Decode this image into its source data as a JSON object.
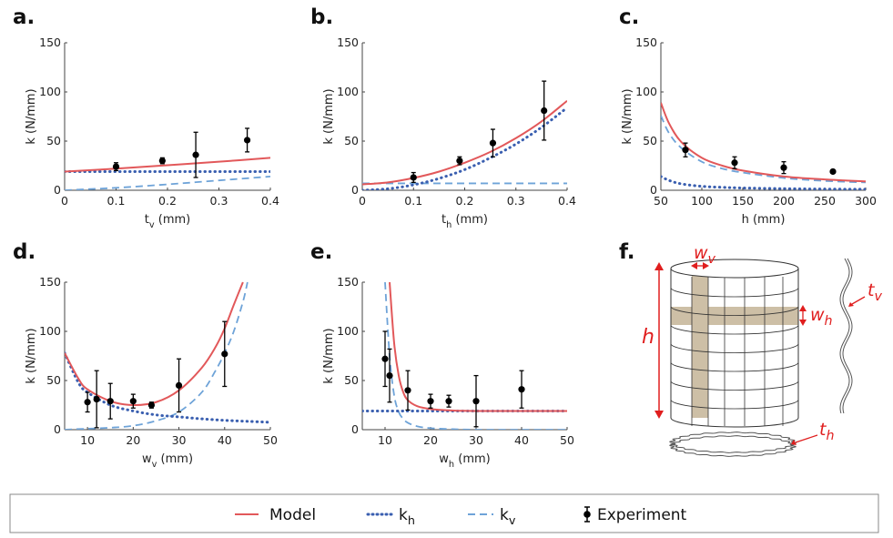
{
  "colors": {
    "model": "#e2585a",
    "kh": "#3a5fb0",
    "kv": "#6ea3d8",
    "experiment": "#000000",
    "diagram_accent": "#e01e1e",
    "band": "#cdbfa6"
  },
  "panels": [
    {
      "label": "a.",
      "xlabel": "t_v (mm)"
    },
    {
      "label": "b.",
      "xlabel": "t_h (mm)"
    },
    {
      "label": "c.",
      "xlabel": "h (mm)"
    },
    {
      "label": "d.",
      "xlabel": "w_v (mm)"
    },
    {
      "label": "e.",
      "xlabel": "w_h (mm)"
    },
    {
      "label": "f.",
      "xlabel": ""
    }
  ],
  "diagram": {
    "w_v": "w_v",
    "w_h": "w_h",
    "h": "h",
    "t_v": "t_v",
    "t_h": "t_h"
  },
  "legend": {
    "model": "Model",
    "kh": "k_h",
    "kv": "k_v",
    "experiment": "Experiment"
  },
  "chart_data": [
    {
      "type": "line",
      "panel": "a.",
      "ylabel": "k (N/mm)",
      "xlabel": "t_v (mm)",
      "xlim": [
        0,
        0.4
      ],
      "ylim": [
        0,
        150
      ],
      "xticks": [
        "0",
        "0.1",
        "0.2",
        "0.3",
        "0.4"
      ],
      "yticks": [
        "0",
        "50",
        "100",
        "150"
      ],
      "series": [
        {
          "name": "Model",
          "x": [
            0,
            0.1,
            0.2,
            0.3,
            0.4
          ],
          "values": [
            19,
            22,
            25.5,
            29,
            33
          ]
        },
        {
          "name": "k_h",
          "x": [
            0,
            0.1,
            0.2,
            0.3,
            0.4
          ],
          "values": [
            19,
            19,
            19,
            19,
            19
          ]
        },
        {
          "name": "k_v",
          "x": [
            0,
            0.1,
            0.2,
            0.3,
            0.4
          ],
          "values": [
            0,
            2.5,
            6,
            10,
            14
          ]
        }
      ],
      "experiment": {
        "x": [
          0.1,
          0.19,
          0.255,
          0.355
        ],
        "y": [
          24,
          30,
          36,
          51
        ],
        "err": [
          4,
          3,
          23,
          12
        ]
      }
    },
    {
      "type": "line",
      "panel": "b.",
      "ylabel": "k (N/mm)",
      "xlabel": "t_h (mm)",
      "xlim": [
        0,
        0.4
      ],
      "ylim": [
        0,
        150
      ],
      "xticks": [
        "0",
        "0.1",
        "0.2",
        "0.3",
        "0.4"
      ],
      "yticks": [
        "0",
        "50",
        "100",
        "150"
      ],
      "series": [
        {
          "name": "Model",
          "x": [
            0,
            0.05,
            0.1,
            0.15,
            0.2,
            0.25,
            0.3,
            0.35,
            0.4
          ],
          "values": [
            6,
            8,
            12.5,
            19,
            28,
            39,
            53,
            70,
            91
          ]
        },
        {
          "name": "k_h",
          "x": [
            0,
            0.05,
            0.1,
            0.15,
            0.2,
            0.25,
            0.3,
            0.35,
            0.4
          ],
          "values": [
            0,
            1.5,
            5.5,
            12,
            21,
            33,
            47,
            64,
            84
          ]
        },
        {
          "name": "k_v",
          "x": [
            0,
            0.4
          ],
          "values": [
            7,
            7
          ]
        }
      ],
      "experiment": {
        "x": [
          0.1,
          0.19,
          0.255,
          0.355
        ],
        "y": [
          13,
          30,
          48,
          81
        ],
        "err": [
          5,
          4,
          14,
          30
        ]
      }
    },
    {
      "type": "line",
      "panel": "c.",
      "ylabel": "k (N/mm)",
      "xlabel": "h (mm)",
      "xlim": [
        50,
        300
      ],
      "ylim": [
        0,
        150
      ],
      "xticks": [
        "50",
        "100",
        "150",
        "200",
        "250",
        "300"
      ],
      "yticks": [
        "0",
        "50",
        "100",
        "150"
      ],
      "series": [
        {
          "name": "Model",
          "x": [
            50,
            60,
            75,
            100,
            125,
            150,
            200,
            250,
            300
          ],
          "values": [
            89,
            68,
            49,
            33,
            25,
            20,
            14,
            11,
            9
          ]
        },
        {
          "name": "k_h",
          "x": [
            50,
            60,
            75,
            100,
            125,
            150,
            200,
            250,
            300
          ],
          "values": [
            14,
            10,
            6.5,
            4,
            3,
            2.3,
            1.6,
            1.2,
            1
          ]
        },
        {
          "name": "k_v",
          "x": [
            50,
            60,
            75,
            100,
            125,
            150,
            200,
            250,
            300
          ],
          "values": [
            76,
            58,
            43,
            29,
            22,
            18,
            12.5,
            9.5,
            8
          ]
        }
      ],
      "experiment": {
        "x": [
          80,
          140,
          200,
          260
        ],
        "y": [
          41,
          28,
          23,
          19
        ],
        "err": [
          7,
          6,
          6,
          1
        ]
      }
    },
    {
      "type": "line",
      "panel": "d.",
      "ylabel": "k (N/mm)",
      "xlabel": "w_v (mm)",
      "xlim": [
        5,
        50
      ],
      "ylim": [
        0,
        150
      ],
      "xticks": [
        "10",
        "20",
        "30",
        "40",
        "50"
      ],
      "yticks": [
        "0",
        "50",
        "100",
        "150"
      ],
      "series": [
        {
          "name": "Model",
          "x": [
            5,
            8,
            10,
            15,
            20,
            25,
            30,
            35,
            38,
            40,
            42,
            44
          ],
          "values": [
            78,
            52,
            41,
            29,
            25,
            28,
            40,
            63,
            84,
            103,
            127,
            150
          ]
        },
        {
          "name": "k_h",
          "x": [
            5,
            8,
            10,
            15,
            20,
            25,
            30,
            35,
            40,
            45,
            50
          ],
          "values": [
            78,
            48,
            38,
            25,
            19,
            15,
            13,
            11,
            9.5,
            8.5,
            7.5
          ]
        },
        {
          "name": "k_v",
          "x": [
            5,
            10,
            15,
            20,
            25,
            30,
            35,
            38,
            40,
            42,
            44,
            45
          ],
          "values": [
            0,
            1,
            2,
            4,
            9,
            18,
            38,
            60,
            78,
            100,
            130,
            150
          ]
        }
      ],
      "experiment": {
        "x": [
          10,
          12,
          15,
          20,
          24,
          30,
          40
        ],
        "y": [
          28,
          31,
          29,
          29,
          25,
          45,
          77
        ],
        "err": [
          10,
          29,
          18,
          7,
          3,
          27,
          33
        ]
      }
    },
    {
      "type": "line",
      "panel": "e.",
      "ylabel": "k (N/mm)",
      "xlabel": "w_h (mm)",
      "xlim": [
        5,
        50
      ],
      "ylim": [
        0,
        150
      ],
      "xticks": [
        "10",
        "20",
        "30",
        "40",
        "50"
      ],
      "yticks": [
        "0",
        "50",
        "100",
        "150"
      ],
      "series": [
        {
          "name": "Model",
          "x": [
            11,
            12,
            13,
            14,
            15,
            17,
            20,
            25,
            30,
            40,
            50
          ],
          "values": [
            150,
            88,
            55,
            38,
            30,
            24,
            21,
            19.5,
            19,
            19,
            19
          ]
        },
        {
          "name": "k_h",
          "x": [
            5,
            50
          ],
          "values": [
            19,
            19
          ]
        },
        {
          "name": "k_v",
          "x": [
            10,
            11,
            12,
            13,
            14,
            15,
            17,
            20,
            25,
            30,
            40,
            50
          ],
          "values": [
            150,
            75,
            35,
            18,
            11,
            7,
            3.5,
            1.5,
            0.5,
            0,
            0,
            0
          ]
        }
      ],
      "experiment": {
        "x": [
          10,
          11,
          15,
          20,
          24,
          30,
          40
        ],
        "y": [
          72,
          55,
          40,
          29,
          29,
          29,
          41
        ],
        "err": [
          28,
          27,
          20,
          7,
          6,
          26,
          19
        ]
      }
    }
  ]
}
